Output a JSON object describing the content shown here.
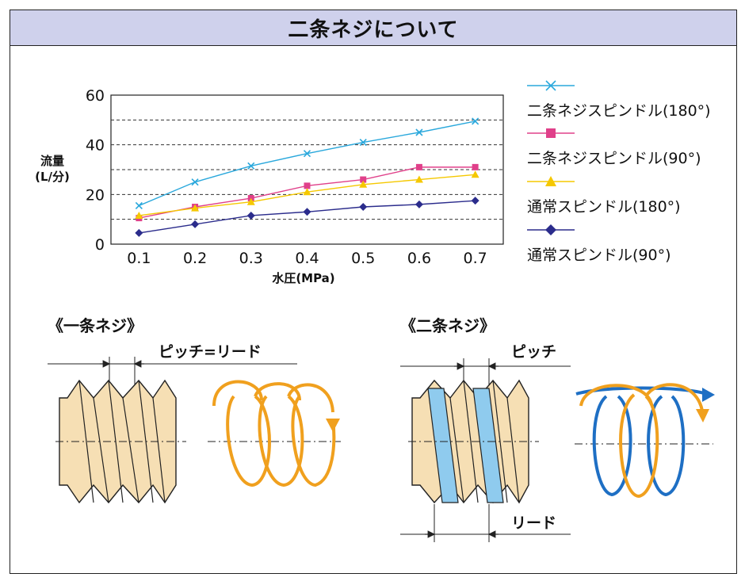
{
  "title": "二条ネジについて",
  "chart_data": {
    "type": "line",
    "x": [
      0.1,
      0.2,
      0.3,
      0.4,
      0.5,
      0.6,
      0.7
    ],
    "xlabel": "水圧(MPa)",
    "ylabel_line1": "流量",
    "ylabel_line2": "(L/分)",
    "ylim": [
      0,
      60
    ],
    "yticks": [
      "0",
      "20",
      "40",
      "60"
    ],
    "xticks": [
      "0.1",
      "0.2",
      "0.3",
      "0.4",
      "0.5",
      "0.6",
      "0.7"
    ],
    "grid": "dashed at 10, 20, 30, 40, 50",
    "legend_position": "right",
    "series": [
      {
        "name": "二条ネジスピンドル(180°)",
        "color": "#2aa8dc",
        "marker": "x",
        "values": [
          15.5,
          25,
          31.5,
          36.5,
          41,
          45,
          49.5
        ]
      },
      {
        "name": "二条ネジスピンドル(90°)",
        "color": "#e0408a",
        "marker": "square",
        "values": [
          10.5,
          15,
          18.5,
          23.5,
          26,
          31,
          31
        ]
      },
      {
        "name": "通常スピンドル(180°)",
        "color": "#f5c800",
        "marker": "triangle",
        "values": [
          11.5,
          14.5,
          17,
          21,
          24,
          26,
          28
        ]
      },
      {
        "name": "通常スピンドル(90°)",
        "color": "#2b2c8c",
        "marker": "diamond",
        "values": [
          4.5,
          8,
          11.5,
          13,
          15,
          16,
          17.5
        ]
      }
    ]
  },
  "single_thread": {
    "heading": "《一条ネジ》",
    "pitch_label": "ピッチ=リード"
  },
  "double_thread": {
    "heading": "《二条ネジ》",
    "pitch_label": "ピッチ",
    "lead_label": "リード"
  },
  "colors": {
    "thread_beige": "#f6dfb4",
    "thread_blue": "#8fcbee",
    "spiral_orange": "#f0a01e",
    "spiral_blue": "#1e6fc4"
  }
}
